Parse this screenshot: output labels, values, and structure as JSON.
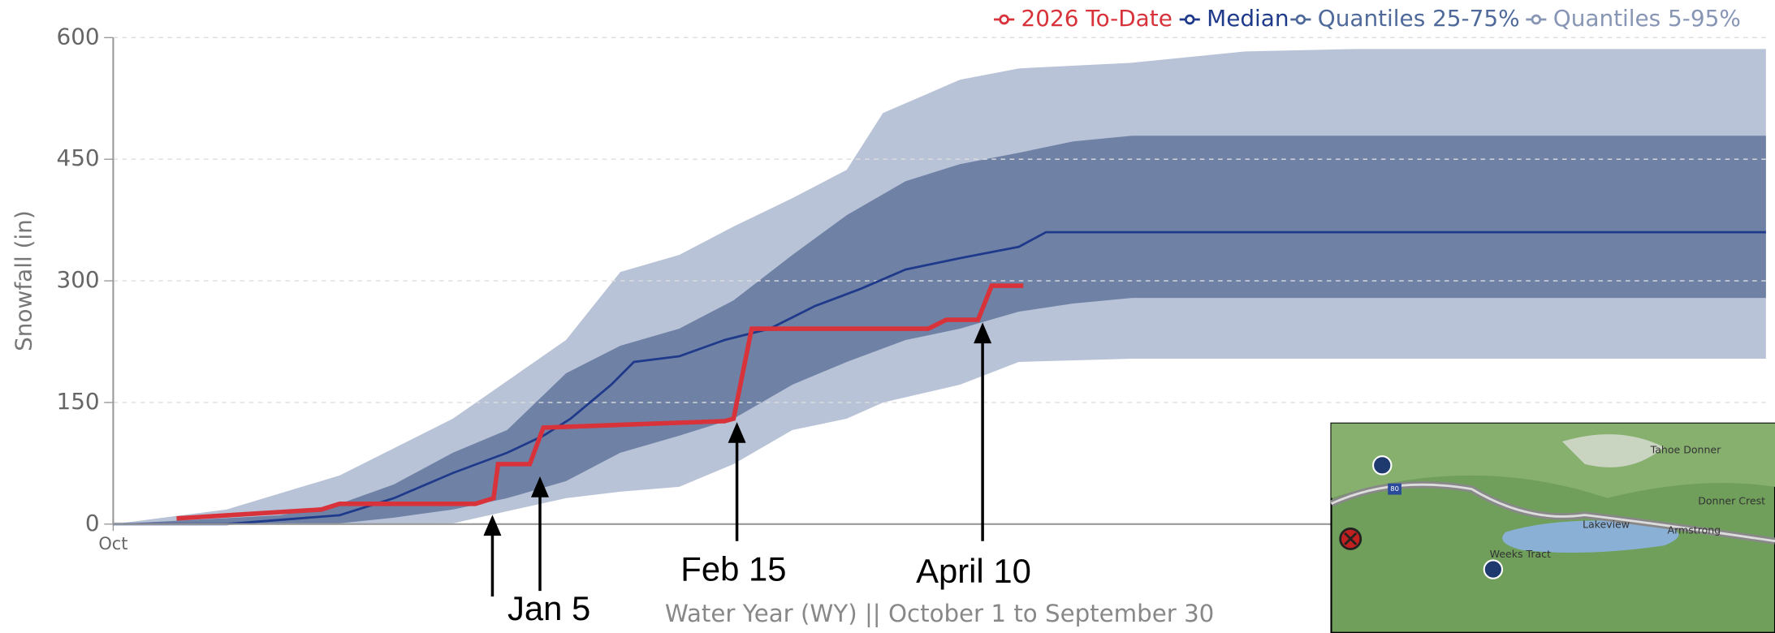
{
  "chart_data": {
    "type": "line",
    "y_label": "Snowfall (in)",
    "x_label": "Water Year (WY) || October 1 to September 30",
    "xlim": [
      0,
      365
    ],
    "xticks": [
      {
        "value": 0,
        "label": "Oct"
      }
    ],
    "ylim": [
      0,
      600
    ],
    "yticks": [
      0,
      150,
      300,
      450,
      600
    ],
    "grid": true,
    "legend": "top-right",
    "bands": [
      {
        "name": "Quantiles 5-95%",
        "color": "#b9c3d7",
        "x": [
          0,
          25,
          50,
          75,
          100,
          112,
          125,
          137,
          150,
          162,
          170,
          187,
          200,
          225,
          250,
          275,
          365
        ],
        "upper": [
          0,
          18,
          60,
          130,
          227,
          311,
          332,
          367,
          402,
          437,
          507,
          548,
          562,
          569,
          583,
          586,
          586
        ],
        "lower": [
          0,
          0,
          0,
          1,
          32,
          40,
          46,
          74,
          116,
          130,
          150,
          172,
          200,
          204,
          204,
          204,
          204
        ]
      },
      {
        "name": "Quantiles 25-75%",
        "color": "#6f82a6",
        "x": [
          0,
          37,
          50,
          62,
          75,
          87,
          100,
          112,
          125,
          137,
          150,
          162,
          175,
          187,
          200,
          212,
          225,
          365
        ],
        "upper": [
          0,
          11,
          25,
          49,
          88,
          116,
          186,
          220,
          241,
          276,
          332,
          381,
          423,
          444,
          458,
          472,
          479,
          479
        ],
        "lower": [
          0,
          0,
          1,
          8,
          18,
          32,
          53,
          88,
          109,
          130,
          172,
          200,
          227,
          241,
          262,
          272,
          279,
          279
        ]
      }
    ],
    "series": [
      {
        "name": "Median",
        "color": "#1f3a8a",
        "x": [
          0,
          25,
          50,
          62,
          75,
          87,
          95,
          101,
          110,
          115,
          125,
          135,
          145,
          155,
          165,
          175,
          187,
          200,
          206,
          225,
          365
        ],
        "values": [
          0,
          0,
          11,
          32,
          63,
          88,
          109,
          130,
          172,
          200,
          207,
          227,
          241,
          269,
          290,
          314,
          328,
          342,
          360,
          360,
          360
        ]
      },
      {
        "name": "2026 To-Date",
        "color": "#d8323a",
        "x": [
          14,
          46,
          50,
          80,
          84,
          85,
          92,
          95,
          135,
          137,
          141,
          180,
          184,
          191,
          194,
          201
        ],
        "values": [
          7,
          18,
          25,
          25,
          32,
          74,
          74,
          119,
          127,
          130,
          241,
          241,
          252,
          252,
          294,
          294
        ]
      }
    ],
    "legend_order": [
      "2026 To-Date",
      "Median",
      "Quantiles 25-75%",
      "Quantiles 5-95%"
    ],
    "annotations": [
      "Jan 5",
      "Feb 15",
      "April 10"
    ]
  },
  "map": {
    "labels": [
      "Tahoe Donner",
      "Donner Crest",
      "Lakeview",
      "Armstrong",
      "Weeks Tract",
      "80"
    ]
  }
}
